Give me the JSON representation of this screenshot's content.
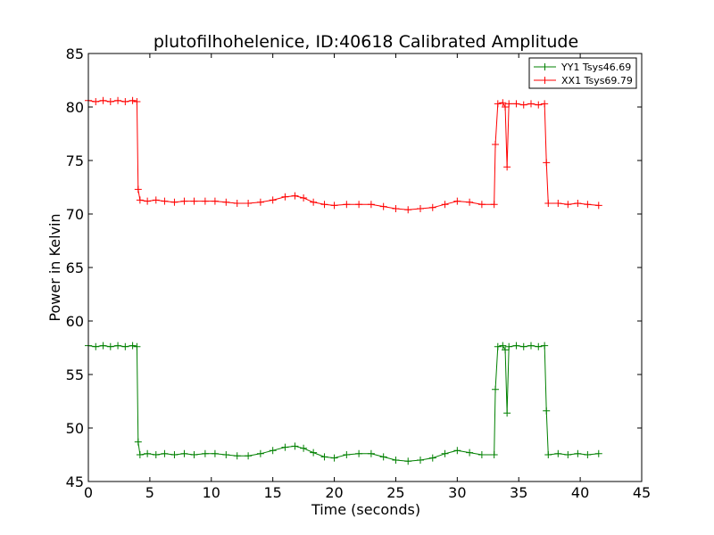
{
  "chart_data": {
    "type": "line",
    "title": "plutofilhohelenice, ID:40618 Calibrated Amplitude",
    "xlabel": "Time (seconds)",
    "ylabel": "Power in Kelvin",
    "xlim": [
      0,
      45
    ],
    "ylim": [
      45,
      85
    ],
    "xticks": [
      "0",
      "5",
      "10",
      "15",
      "20",
      "25",
      "30",
      "35",
      "40",
      "45"
    ],
    "yticks": [
      "45",
      "50",
      "55",
      "60",
      "65",
      "70",
      "75",
      "80",
      "85"
    ],
    "grid": false,
    "legend_position": "top-right",
    "marker": "plus",
    "series": [
      {
        "name": "YY1 Tsys46.69",
        "color": "#008000",
        "points": [
          [
            0.0,
            57.7
          ],
          [
            0.6,
            57.6
          ],
          [
            1.2,
            57.7
          ],
          [
            1.8,
            57.6
          ],
          [
            2.4,
            57.7
          ],
          [
            3.0,
            57.6
          ],
          [
            3.6,
            57.7
          ],
          [
            3.95,
            57.6
          ],
          [
            4.05,
            48.7
          ],
          [
            4.2,
            47.5
          ],
          [
            4.8,
            47.6
          ],
          [
            5.5,
            47.5
          ],
          [
            6.2,
            47.6
          ],
          [
            7.0,
            47.5
          ],
          [
            7.8,
            47.6
          ],
          [
            8.6,
            47.5
          ],
          [
            9.5,
            47.6
          ],
          [
            10.3,
            47.6
          ],
          [
            11.2,
            47.5
          ],
          [
            12.1,
            47.4
          ],
          [
            13.0,
            47.4
          ],
          [
            14.0,
            47.6
          ],
          [
            15.0,
            47.9
          ],
          [
            16.0,
            48.2
          ],
          [
            16.8,
            48.3
          ],
          [
            17.5,
            48.1
          ],
          [
            18.3,
            47.7
          ],
          [
            19.2,
            47.3
          ],
          [
            20.0,
            47.2
          ],
          [
            21.0,
            47.5
          ],
          [
            22.0,
            47.6
          ],
          [
            23.0,
            47.6
          ],
          [
            24.0,
            47.3
          ],
          [
            25.0,
            47.0
          ],
          [
            26.0,
            46.9
          ],
          [
            27.0,
            47.0
          ],
          [
            28.0,
            47.2
          ],
          [
            29.0,
            47.6
          ],
          [
            30.0,
            47.9
          ],
          [
            31.0,
            47.7
          ],
          [
            32.0,
            47.5
          ],
          [
            33.0,
            47.5
          ],
          [
            33.1,
            53.6
          ],
          [
            33.3,
            57.6
          ],
          [
            33.7,
            57.7
          ],
          [
            33.9,
            57.3
          ],
          [
            34.05,
            51.4
          ],
          [
            34.2,
            57.6
          ],
          [
            34.8,
            57.7
          ],
          [
            35.4,
            57.6
          ],
          [
            36.0,
            57.7
          ],
          [
            36.6,
            57.6
          ],
          [
            37.1,
            57.7
          ],
          [
            37.25,
            51.6
          ],
          [
            37.4,
            47.5
          ],
          [
            38.2,
            47.6
          ],
          [
            39.0,
            47.5
          ],
          [
            39.8,
            47.6
          ],
          [
            40.6,
            47.5
          ],
          [
            41.5,
            47.6
          ]
        ]
      },
      {
        "name": "XX1 Tsys69.79",
        "color": "#ff0000",
        "points": [
          [
            0.0,
            80.6
          ],
          [
            0.6,
            80.5
          ],
          [
            1.2,
            80.6
          ],
          [
            1.8,
            80.5
          ],
          [
            2.4,
            80.6
          ],
          [
            3.0,
            80.5
          ],
          [
            3.6,
            80.6
          ],
          [
            3.95,
            80.5
          ],
          [
            4.05,
            72.3
          ],
          [
            4.2,
            71.3
          ],
          [
            4.8,
            71.2
          ],
          [
            5.5,
            71.3
          ],
          [
            6.2,
            71.2
          ],
          [
            7.0,
            71.1
          ],
          [
            7.8,
            71.2
          ],
          [
            8.6,
            71.2
          ],
          [
            9.5,
            71.2
          ],
          [
            10.3,
            71.2
          ],
          [
            11.2,
            71.1
          ],
          [
            12.1,
            71.0
          ],
          [
            13.0,
            71.0
          ],
          [
            14.0,
            71.1
          ],
          [
            15.0,
            71.3
          ],
          [
            16.0,
            71.6
          ],
          [
            16.8,
            71.7
          ],
          [
            17.5,
            71.5
          ],
          [
            18.3,
            71.1
          ],
          [
            19.2,
            70.9
          ],
          [
            20.0,
            70.8
          ],
          [
            21.0,
            70.9
          ],
          [
            22.0,
            70.9
          ],
          [
            23.0,
            70.9
          ],
          [
            24.0,
            70.7
          ],
          [
            25.0,
            70.5
          ],
          [
            26.0,
            70.4
          ],
          [
            27.0,
            70.5
          ],
          [
            28.0,
            70.6
          ],
          [
            29.0,
            70.9
          ],
          [
            30.0,
            71.2
          ],
          [
            31.0,
            71.1
          ],
          [
            32.0,
            70.9
          ],
          [
            33.0,
            70.9
          ],
          [
            33.1,
            76.5
          ],
          [
            33.3,
            80.3
          ],
          [
            33.7,
            80.4
          ],
          [
            33.9,
            80.0
          ],
          [
            34.05,
            74.4
          ],
          [
            34.2,
            80.3
          ],
          [
            34.8,
            80.3
          ],
          [
            35.4,
            80.2
          ],
          [
            36.0,
            80.3
          ],
          [
            36.6,
            80.2
          ],
          [
            37.1,
            80.3
          ],
          [
            37.25,
            74.8
          ],
          [
            37.4,
            71.0
          ],
          [
            38.2,
            71.0
          ],
          [
            39.0,
            70.9
          ],
          [
            39.8,
            71.0
          ],
          [
            40.6,
            70.9
          ],
          [
            41.5,
            70.8
          ]
        ]
      }
    ]
  }
}
